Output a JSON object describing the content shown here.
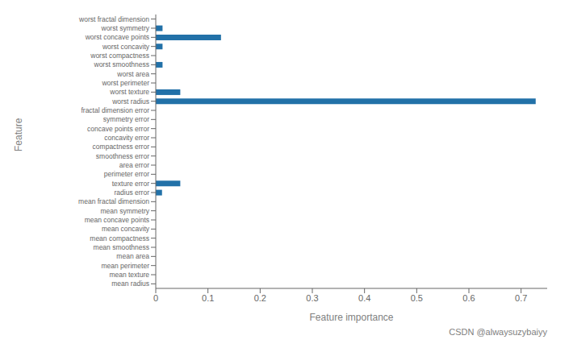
{
  "chart_data": {
    "type": "bar",
    "orientation": "horizontal",
    "categories": [
      "mean radius",
      "mean texture",
      "mean perimeter",
      "mean area",
      "mean smoothness",
      "mean compactness",
      "mean concavity",
      "mean concave points",
      "mean symmetry",
      "mean fractal dimension",
      "radius error",
      "texture error",
      "perimeter error",
      "area error",
      "smoothness error",
      "compactness error",
      "concavity error",
      "concave points error",
      "symmetry error",
      "fractal dimension error",
      "worst radius",
      "worst texture",
      "worst perimeter",
      "worst area",
      "worst smoothness",
      "worst compactness",
      "worst concavity",
      "worst concave points",
      "worst symmetry",
      "worst fractal dimension"
    ],
    "values": [
      0.0,
      0.0,
      0.0,
      0.0,
      0.0,
      0.0,
      0.0,
      0.0,
      0.0,
      0.0,
      0.012,
      0.047,
      0.0,
      0.0,
      0.0,
      0.0,
      0.0,
      0.0,
      0.0,
      0.0,
      0.728,
      0.047,
      0.0,
      0.0,
      0.013,
      0.0,
      0.013,
      0.125,
      0.013,
      0.0
    ],
    "color": "#2271a8",
    "x_label": "Feature importance",
    "y_label": "Feature",
    "xlim": [
      0,
      0.75
    ],
    "xticks": [
      0,
      0.1,
      0.2,
      0.3,
      0.4,
      0.5,
      0.6,
      0.7
    ],
    "grid": false,
    "annotations": [
      "CSDN @alwaysuzybaiyy"
    ]
  }
}
